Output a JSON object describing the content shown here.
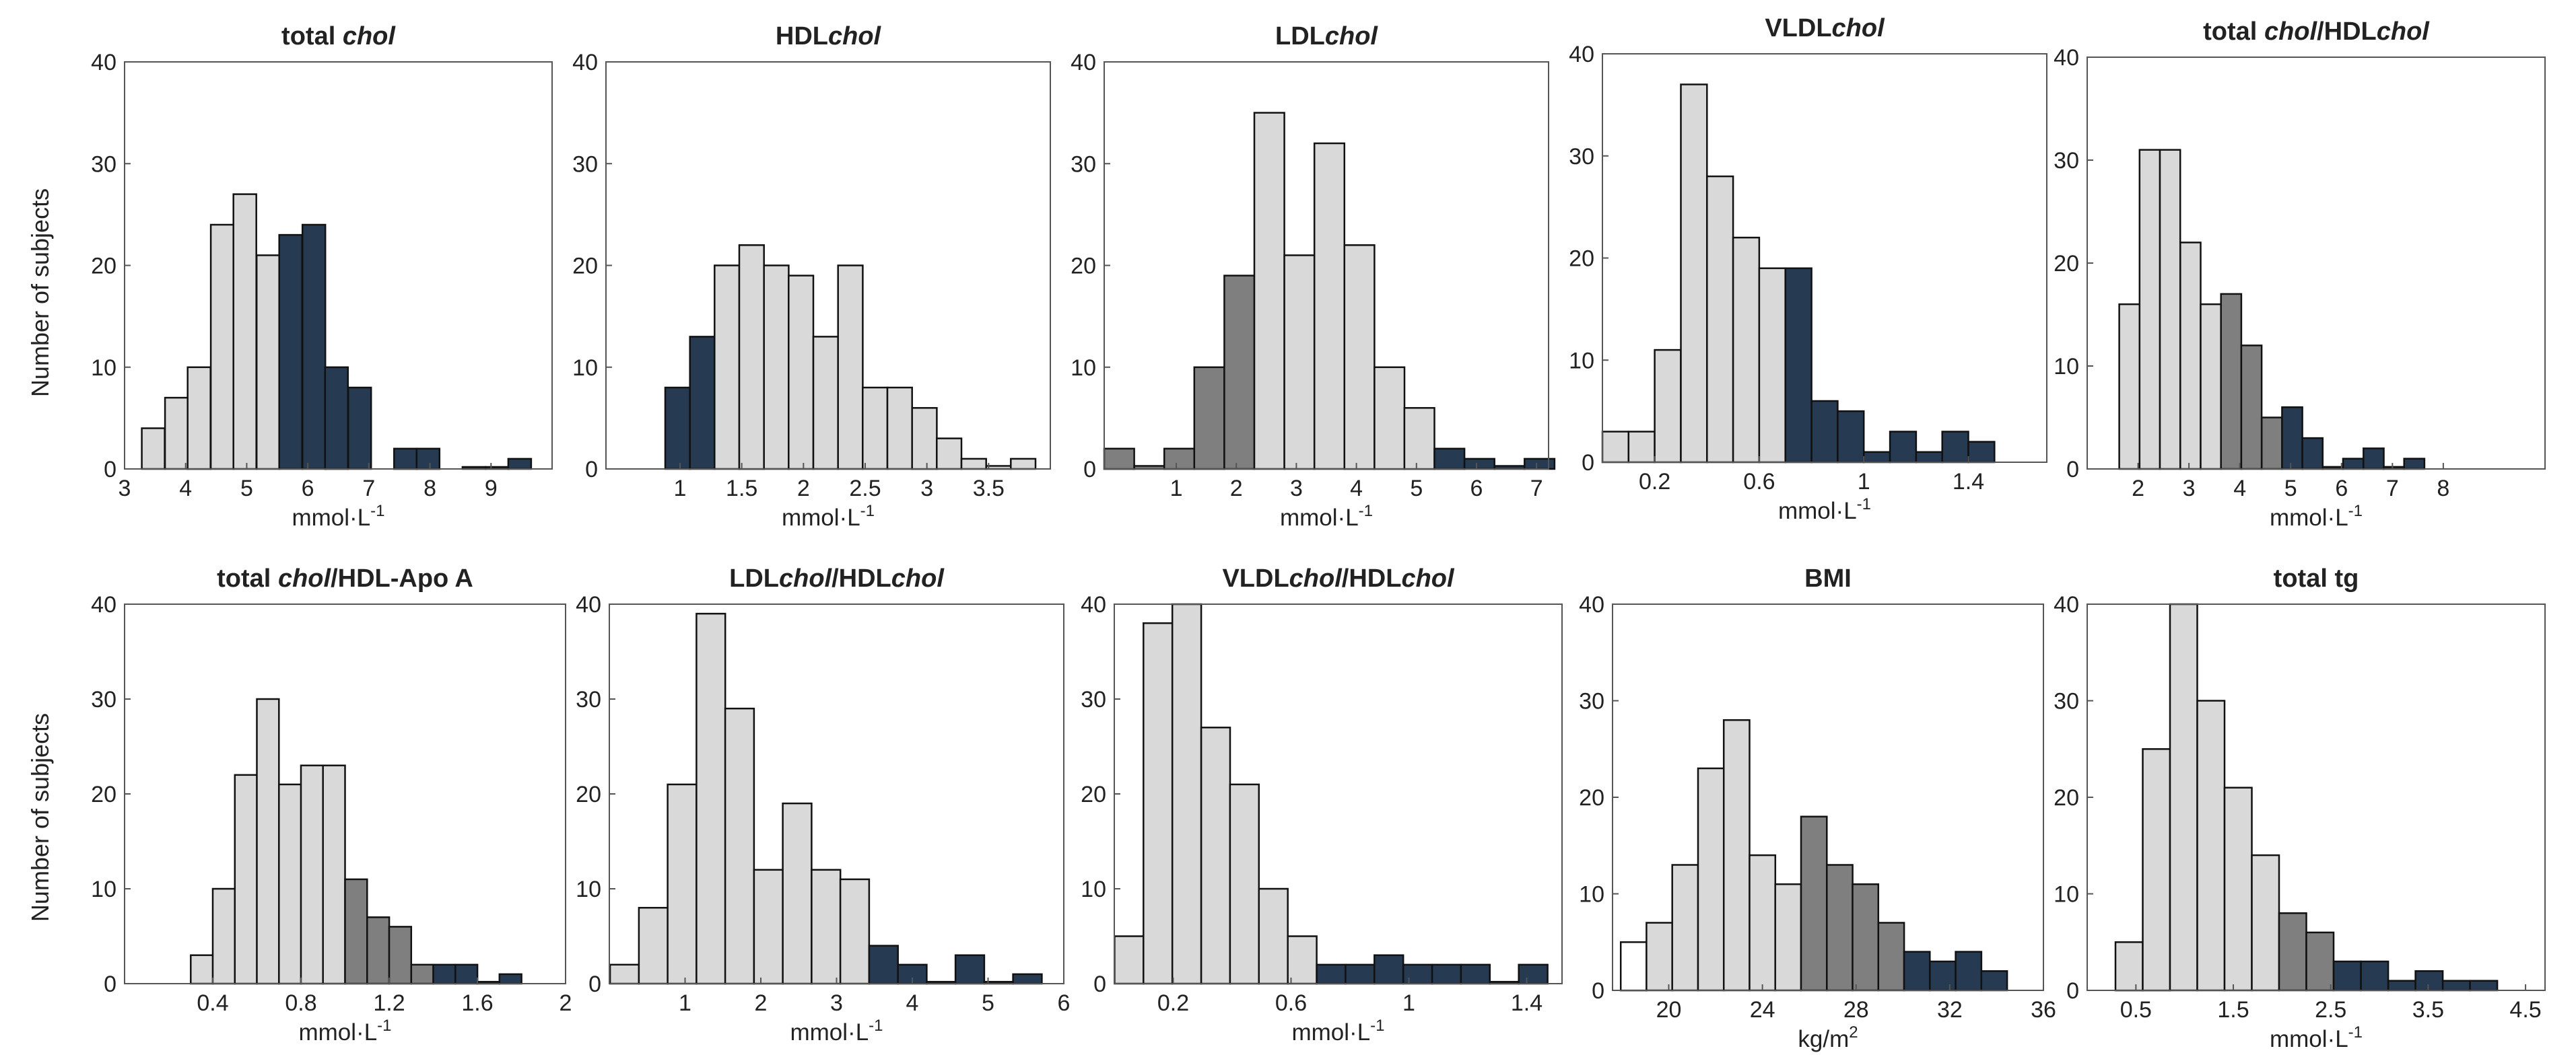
{
  "figure": {
    "ylabel": "Number of subjects",
    "colors": {
      "light": "#d9d9d9",
      "mid": "#7f7f7f",
      "dark": "#263a52",
      "white": "#ffffff",
      "edge": "#111111"
    }
  },
  "chart_data": [
    {
      "type": "bar",
      "title_parts": [
        {
          "t": "total ",
          "i": false
        },
        {
          "t": "chol",
          "i": true
        }
      ],
      "xlabel": "mmol·L-1",
      "xlim": [
        3,
        10
      ],
      "ylim": [
        0,
        40
      ],
      "xticks": [
        3,
        4,
        5,
        6,
        7,
        8,
        9
      ],
      "yticks": [
        0,
        10,
        20,
        30,
        40
      ],
      "bin_width": 0.375,
      "bins": [
        {
          "x": 3.47,
          "y": 4,
          "c": "light"
        },
        {
          "x": 3.85,
          "y": 7,
          "c": "light"
        },
        {
          "x": 4.22,
          "y": 10,
          "c": "light"
        },
        {
          "x": 4.6,
          "y": 24,
          "c": "light"
        },
        {
          "x": 4.97,
          "y": 27,
          "c": "light"
        },
        {
          "x": 5.35,
          "y": 21,
          "c": "light"
        },
        {
          "x": 5.72,
          "y": 23,
          "c": "dark"
        },
        {
          "x": 6.1,
          "y": 24,
          "c": "dark"
        },
        {
          "x": 6.47,
          "y": 10,
          "c": "dark"
        },
        {
          "x": 6.85,
          "y": 8,
          "c": "dark"
        },
        {
          "x": 7.22,
          "y": 0,
          "c": "dark"
        },
        {
          "x": 7.6,
          "y": 2,
          "c": "dark"
        },
        {
          "x": 7.97,
          "y": 2,
          "c": "dark"
        },
        {
          "x": 8.35,
          "y": 0,
          "c": "dark"
        },
        {
          "x": 8.72,
          "y": 0.2,
          "c": "dark"
        },
        {
          "x": 9.1,
          "y": 0.2,
          "c": "dark"
        },
        {
          "x": 9.47,
          "y": 1,
          "c": "dark"
        }
      ]
    },
    {
      "type": "bar",
      "title_parts": [
        {
          "t": "HDL",
          "i": false
        },
        {
          "t": "chol",
          "i": true
        }
      ],
      "xlabel": "mmol·L-1",
      "xlim": [
        0.4,
        4
      ],
      "ylim": [
        0,
        40
      ],
      "xticks": [
        1,
        1.5,
        2,
        2.5,
        3,
        3.5
      ],
      "yticks": [
        0,
        10,
        20,
        30,
        40
      ],
      "bin_width": 0.2,
      "bins": [
        {
          "x": 0.98,
          "y": 8,
          "c": "dark"
        },
        {
          "x": 1.18,
          "y": 13,
          "c": "dark"
        },
        {
          "x": 1.38,
          "y": 20,
          "c": "light"
        },
        {
          "x": 1.58,
          "y": 22,
          "c": "light"
        },
        {
          "x": 1.78,
          "y": 20,
          "c": "light"
        },
        {
          "x": 1.98,
          "y": 19,
          "c": "light"
        },
        {
          "x": 2.18,
          "y": 13,
          "c": "light"
        },
        {
          "x": 2.38,
          "y": 20,
          "c": "light"
        },
        {
          "x": 2.58,
          "y": 8,
          "c": "light"
        },
        {
          "x": 2.78,
          "y": 8,
          "c": "light"
        },
        {
          "x": 2.98,
          "y": 6,
          "c": "light"
        },
        {
          "x": 3.18,
          "y": 3,
          "c": "light"
        },
        {
          "x": 3.38,
          "y": 1,
          "c": "light"
        },
        {
          "x": 3.58,
          "y": 0.3,
          "c": "light"
        },
        {
          "x": 3.78,
          "y": 1,
          "c": "light"
        }
      ]
    },
    {
      "type": "bar",
      "title_parts": [
        {
          "t": "LDL",
          "i": false
        },
        {
          "t": "chol",
          "i": true
        }
      ],
      "xlabel": "mmol·L-1",
      "xlim": [
        -0.2,
        7.2
      ],
      "ylim": [
        0,
        40
      ],
      "xticks": [
        1,
        2,
        3,
        4,
        5,
        6,
        7
      ],
      "yticks": [
        0,
        10,
        20,
        30,
        40
      ],
      "bin_width": 0.5,
      "bins": [
        {
          "x": 0.05,
          "y": 2,
          "c": "mid"
        },
        {
          "x": 0.55,
          "y": 0.3,
          "c": "mid"
        },
        {
          "x": 1.05,
          "y": 2,
          "c": "mid"
        },
        {
          "x": 1.55,
          "y": 10,
          "c": "mid"
        },
        {
          "x": 2.05,
          "y": 19,
          "c": "mid"
        },
        {
          "x": 2.55,
          "y": 35,
          "c": "light"
        },
        {
          "x": 3.05,
          "y": 21,
          "c": "light"
        },
        {
          "x": 3.55,
          "y": 32,
          "c": "light"
        },
        {
          "x": 4.05,
          "y": 22,
          "c": "light"
        },
        {
          "x": 4.55,
          "y": 10,
          "c": "light"
        },
        {
          "x": 5.05,
          "y": 6,
          "c": "light"
        },
        {
          "x": 5.55,
          "y": 2,
          "c": "dark"
        },
        {
          "x": 6.05,
          "y": 1,
          "c": "dark"
        },
        {
          "x": 6.55,
          "y": 0.3,
          "c": "dark"
        },
        {
          "x": 7.05,
          "y": 1,
          "c": "dark"
        }
      ]
    },
    {
      "type": "bar",
      "title_parts": [
        {
          "t": "VLDL",
          "i": false
        },
        {
          "t": "chol",
          "i": true
        }
      ],
      "xlabel": "mmol·L-1",
      "xlim": [
        0,
        1.7
      ],
      "ylim": [
        0,
        40
      ],
      "xticks": [
        0.2,
        0.6,
        1,
        1.4
      ],
      "yticks": [
        0,
        10,
        20,
        30,
        40
      ],
      "bin_width": 0.1,
      "bins": [
        {
          "x": 0.05,
          "y": 3,
          "c": "light"
        },
        {
          "x": 0.15,
          "y": 3,
          "c": "light"
        },
        {
          "x": 0.25,
          "y": 11,
          "c": "light"
        },
        {
          "x": 0.35,
          "y": 37,
          "c": "light"
        },
        {
          "x": 0.45,
          "y": 28,
          "c": "light"
        },
        {
          "x": 0.55,
          "y": 22,
          "c": "light"
        },
        {
          "x": 0.65,
          "y": 19,
          "c": "light"
        },
        {
          "x": 0.75,
          "y": 19,
          "c": "dark"
        },
        {
          "x": 0.85,
          "y": 6,
          "c": "dark"
        },
        {
          "x": 0.95,
          "y": 5,
          "c": "dark"
        },
        {
          "x": 1.05,
          "y": 1,
          "c": "dark"
        },
        {
          "x": 1.15,
          "y": 3,
          "c": "dark"
        },
        {
          "x": 1.25,
          "y": 1,
          "c": "dark"
        },
        {
          "x": 1.35,
          "y": 3,
          "c": "dark"
        },
        {
          "x": 1.45,
          "y": 2,
          "c": "dark"
        }
      ]
    },
    {
      "type": "bar",
      "title_parts": [
        {
          "t": "total ",
          "i": false
        },
        {
          "t": "chol",
          "i": true
        },
        {
          "t": "/HDL",
          "i": false
        },
        {
          "t": "chol",
          "i": true
        }
      ],
      "xlabel": "mmol·L-1",
      "xlim": [
        1,
        10
      ],
      "ylim": [
        0,
        40
      ],
      "xticks": [
        2,
        3,
        4,
        5,
        6,
        7,
        8
      ],
      "yticks": [
        0,
        10,
        20,
        30,
        40
      ],
      "bin_width": 0.4,
      "bins": [
        {
          "x": 1.83,
          "y": 16,
          "c": "light"
        },
        {
          "x": 2.23,
          "y": 31,
          "c": "light"
        },
        {
          "x": 2.63,
          "y": 31,
          "c": "light"
        },
        {
          "x": 3.03,
          "y": 22,
          "c": "light"
        },
        {
          "x": 3.43,
          "y": 16,
          "c": "light"
        },
        {
          "x": 3.83,
          "y": 17,
          "c": "mid"
        },
        {
          "x": 4.23,
          "y": 12,
          "c": "mid"
        },
        {
          "x": 4.63,
          "y": 5,
          "c": "mid"
        },
        {
          "x": 5.03,
          "y": 6,
          "c": "dark"
        },
        {
          "x": 5.43,
          "y": 3,
          "c": "dark"
        },
        {
          "x": 5.83,
          "y": 0.2,
          "c": "dark"
        },
        {
          "x": 6.23,
          "y": 1,
          "c": "dark"
        },
        {
          "x": 6.63,
          "y": 2,
          "c": "dark"
        },
        {
          "x": 7.03,
          "y": 0.2,
          "c": "dark"
        },
        {
          "x": 7.43,
          "y": 1,
          "c": "dark"
        }
      ]
    },
    {
      "type": "bar",
      "title_parts": [
        {
          "t": "total ",
          "i": false
        },
        {
          "t": "chol",
          "i": true
        },
        {
          "t": "/HDL-Apo A",
          "i": false
        }
      ],
      "xlabel": "mmol·L-1",
      "xlim": [
        0,
        2
      ],
      "ylim": [
        0,
        40
      ],
      "xticks": [
        0.4,
        0.8,
        1.2,
        1.6,
        2
      ],
      "yticks": [
        0,
        10,
        20,
        30,
        40
      ],
      "bin_width": 0.1,
      "bins": [
        {
          "x": 0.35,
          "y": 3,
          "c": "light"
        },
        {
          "x": 0.45,
          "y": 10,
          "c": "light"
        },
        {
          "x": 0.55,
          "y": 22,
          "c": "light"
        },
        {
          "x": 0.65,
          "y": 30,
          "c": "light"
        },
        {
          "x": 0.75,
          "y": 21,
          "c": "light"
        },
        {
          "x": 0.85,
          "y": 23,
          "c": "light"
        },
        {
          "x": 0.95,
          "y": 23,
          "c": "light"
        },
        {
          "x": 1.05,
          "y": 11,
          "c": "mid"
        },
        {
          "x": 1.15,
          "y": 7,
          "c": "mid"
        },
        {
          "x": 1.25,
          "y": 6,
          "c": "mid"
        },
        {
          "x": 1.35,
          "y": 2,
          "c": "mid"
        },
        {
          "x": 1.45,
          "y": 2,
          "c": "dark"
        },
        {
          "x": 1.55,
          "y": 2,
          "c": "dark"
        },
        {
          "x": 1.65,
          "y": 0.2,
          "c": "dark"
        },
        {
          "x": 1.75,
          "y": 1,
          "c": "dark"
        }
      ]
    },
    {
      "type": "bar",
      "title_parts": [
        {
          "t": "LDL",
          "i": false
        },
        {
          "t": "chol",
          "i": true
        },
        {
          "t": "/HDL",
          "i": false
        },
        {
          "t": "chol",
          "i": true
        }
      ],
      "xlabel": "mmol·L-1",
      "xlim": [
        0,
        6
      ],
      "ylim": [
        0,
        40
      ],
      "xticks": [
        1,
        2,
        3,
        4,
        5,
        6
      ],
      "yticks": [
        0,
        10,
        20,
        30,
        40
      ],
      "bin_width": 0.38,
      "bins": [
        {
          "x": 0.2,
          "y": 2,
          "c": "light"
        },
        {
          "x": 0.58,
          "y": 8,
          "c": "light"
        },
        {
          "x": 0.96,
          "y": 21,
          "c": "light"
        },
        {
          "x": 1.34,
          "y": 39,
          "c": "light"
        },
        {
          "x": 1.72,
          "y": 29,
          "c": "light"
        },
        {
          "x": 2.1,
          "y": 12,
          "c": "light"
        },
        {
          "x": 2.48,
          "y": 19,
          "c": "light"
        },
        {
          "x": 2.86,
          "y": 12,
          "c": "light"
        },
        {
          "x": 3.24,
          "y": 11,
          "c": "light"
        },
        {
          "x": 3.62,
          "y": 4,
          "c": "dark"
        },
        {
          "x": 4.0,
          "y": 2,
          "c": "dark"
        },
        {
          "x": 4.38,
          "y": 0.2,
          "c": "dark"
        },
        {
          "x": 4.76,
          "y": 3,
          "c": "dark"
        },
        {
          "x": 5.14,
          "y": 0.2,
          "c": "dark"
        },
        {
          "x": 5.52,
          "y": 1,
          "c": "dark"
        }
      ]
    },
    {
      "type": "bar",
      "title_parts": [
        {
          "t": "VLDL",
          "i": false
        },
        {
          "t": "chol",
          "i": true
        },
        {
          "t": "/HDL",
          "i": false
        },
        {
          "t": "chol",
          "i": true
        }
      ],
      "xlabel": "mmol·L-1",
      "xlim": [
        0,
        1.52
      ],
      "ylim": [
        0,
        40
      ],
      "xticks": [
        0.2,
        0.6,
        1,
        1.4
      ],
      "yticks": [
        0,
        10,
        20,
        30,
        40
      ],
      "bin_width": 0.098,
      "bins": [
        {
          "x": 0.05,
          "y": 5,
          "c": "light"
        },
        {
          "x": 0.148,
          "y": 38,
          "c": "light"
        },
        {
          "x": 0.246,
          "y": 40,
          "c": "light"
        },
        {
          "x": 0.344,
          "y": 27,
          "c": "light"
        },
        {
          "x": 0.442,
          "y": 21,
          "c": "light"
        },
        {
          "x": 0.54,
          "y": 10,
          "c": "light"
        },
        {
          "x": 0.638,
          "y": 5,
          "c": "light"
        },
        {
          "x": 0.736,
          "y": 2,
          "c": "dark"
        },
        {
          "x": 0.834,
          "y": 2,
          "c": "dark"
        },
        {
          "x": 0.932,
          "y": 3,
          "c": "dark"
        },
        {
          "x": 1.03,
          "y": 2,
          "c": "dark"
        },
        {
          "x": 1.128,
          "y": 2,
          "c": "dark"
        },
        {
          "x": 1.226,
          "y": 2,
          "c": "dark"
        },
        {
          "x": 1.324,
          "y": 0.2,
          "c": "dark"
        },
        {
          "x": 1.422,
          "y": 2,
          "c": "dark"
        }
      ]
    },
    {
      "type": "bar",
      "title_parts": [
        {
          "t": "BMI",
          "i": false
        }
      ],
      "xlabel": "kg/m2",
      "xlim": [
        17.6,
        36
      ],
      "ylim": [
        0,
        40
      ],
      "xticks": [
        20,
        24,
        28,
        32,
        36
      ],
      "yticks": [
        0,
        10,
        20,
        30,
        40
      ],
      "bin_width": 1.1,
      "bins": [
        {
          "x": 18.5,
          "y": 5,
          "c": "white"
        },
        {
          "x": 19.6,
          "y": 7,
          "c": "light"
        },
        {
          "x": 20.7,
          "y": 13,
          "c": "light"
        },
        {
          "x": 21.8,
          "y": 23,
          "c": "light"
        },
        {
          "x": 22.9,
          "y": 28,
          "c": "light"
        },
        {
          "x": 24.0,
          "y": 14,
          "c": "light"
        },
        {
          "x": 25.1,
          "y": 11,
          "c": "light"
        },
        {
          "x": 26.2,
          "y": 18,
          "c": "mid"
        },
        {
          "x": 27.3,
          "y": 13,
          "c": "mid"
        },
        {
          "x": 28.4,
          "y": 11,
          "c": "mid"
        },
        {
          "x": 29.5,
          "y": 7,
          "c": "mid"
        },
        {
          "x": 30.6,
          "y": 4,
          "c": "dark"
        },
        {
          "x": 31.7,
          "y": 3,
          "c": "dark"
        },
        {
          "x": 32.8,
          "y": 4,
          "c": "dark"
        },
        {
          "x": 33.9,
          "y": 2,
          "c": "dark"
        }
      ]
    },
    {
      "type": "bar",
      "title_parts": [
        {
          "t": "total tg",
          "i": false
        }
      ],
      "xlabel": "mmol·L-1",
      "xlim": [
        0,
        4.7
      ],
      "ylim": [
        0,
        40
      ],
      "xticks": [
        0.5,
        1.5,
        2.5,
        3.5,
        4.5
      ],
      "yticks": [
        0,
        10,
        20,
        30,
        40
      ],
      "bin_width": 0.28,
      "bins": [
        {
          "x": 0.43,
          "y": 5,
          "c": "light"
        },
        {
          "x": 0.71,
          "y": 25,
          "c": "light"
        },
        {
          "x": 0.99,
          "y": 40,
          "c": "light"
        },
        {
          "x": 1.27,
          "y": 30,
          "c": "light"
        },
        {
          "x": 1.55,
          "y": 21,
          "c": "light"
        },
        {
          "x": 1.83,
          "y": 14,
          "c": "light"
        },
        {
          "x": 2.11,
          "y": 8,
          "c": "mid"
        },
        {
          "x": 2.39,
          "y": 6,
          "c": "mid"
        },
        {
          "x": 2.67,
          "y": 3,
          "c": "dark"
        },
        {
          "x": 2.95,
          "y": 3,
          "c": "dark"
        },
        {
          "x": 3.23,
          "y": 1,
          "c": "dark"
        },
        {
          "x": 3.51,
          "y": 2,
          "c": "dark"
        },
        {
          "x": 3.79,
          "y": 1,
          "c": "dark"
        },
        {
          "x": 4.07,
          "y": 1,
          "c": "dark"
        }
      ]
    }
  ]
}
